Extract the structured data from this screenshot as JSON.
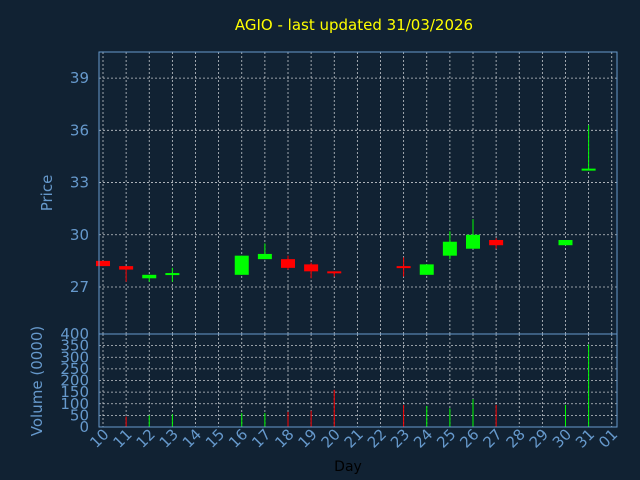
{
  "title": "AGIO - last updated 31/03/2026",
  "colors": {
    "background": "#112233",
    "title": "#ffff00",
    "axis": "#6699cc",
    "up": "#00ff00",
    "down": "#ff0000",
    "grid": "#ffffff"
  },
  "chart_data": [
    {
      "type": "candlestick",
      "ylabel": "Price",
      "ylim": [
        24.3,
        40.5
      ],
      "yticks": [
        27,
        30,
        33,
        36,
        39
      ],
      "grid": true,
      "candles": [
        {
          "day": "10",
          "open": 28.5,
          "high": 28.5,
          "low": 28.2,
          "close": 28.2
        },
        {
          "day": "11",
          "open": 28.2,
          "high": 28.2,
          "low": 27.3,
          "close": 28.0
        },
        {
          "day": "12",
          "open": 27.5,
          "high": 27.7,
          "low": 27.3,
          "close": 27.7
        },
        {
          "day": "13",
          "open": 27.7,
          "high": 28.1,
          "low": 27.3,
          "close": 27.8
        },
        {
          "day": "16",
          "open": 27.7,
          "high": 28.8,
          "low": 27.7,
          "close": 28.8
        },
        {
          "day": "17",
          "open": 28.6,
          "high": 29.5,
          "low": 28.6,
          "close": 28.9
        },
        {
          "day": "18",
          "open": 28.6,
          "high": 28.8,
          "low": 28.0,
          "close": 28.1
        },
        {
          "day": "19",
          "open": 28.3,
          "high": 28.4,
          "low": 27.5,
          "close": 27.9
        },
        {
          "day": "20",
          "open": 27.9,
          "high": 27.9,
          "low": 27.6,
          "close": 27.8
        },
        {
          "day": "23",
          "open": 28.2,
          "high": 28.7,
          "low": 27.6,
          "close": 28.1
        },
        {
          "day": "24",
          "open": 27.7,
          "high": 28.3,
          "low": 27.7,
          "close": 28.3
        },
        {
          "day": "25",
          "open": 28.8,
          "high": 30.2,
          "low": 28.6,
          "close": 29.6
        },
        {
          "day": "26",
          "open": 29.2,
          "high": 30.9,
          "low": 29.2,
          "close": 30.0
        },
        {
          "day": "27",
          "open": 29.7,
          "high": 29.8,
          "low": 29.2,
          "close": 29.4
        },
        {
          "day": "30",
          "open": 29.4,
          "high": 29.7,
          "low": 29.4,
          "close": 29.7
        },
        {
          "day": "31",
          "open": 33.7,
          "high": 36.3,
          "low": 33.7,
          "close": 33.8
        }
      ]
    },
    {
      "type": "bar",
      "ylabel": "Volume (0000)",
      "xlabel": "Day",
      "ylim": [
        0,
        400
      ],
      "yticks": [
        0,
        50,
        100,
        150,
        200,
        250,
        300,
        350,
        400
      ],
      "categories": [
        "10",
        "11",
        "12",
        "13",
        "14",
        "15",
        "16",
        "17",
        "18",
        "19",
        "20",
        "21",
        "22",
        "23",
        "24",
        "25",
        "26",
        "27",
        "28",
        "29",
        "30",
        "31",
        "01"
      ],
      "values": [
        0,
        45,
        50,
        55,
        0,
        0,
        60,
        60,
        65,
        70,
        160,
        0,
        0,
        95,
        90,
        80,
        120,
        95,
        0,
        0,
        95,
        355,
        0
      ],
      "direction": [
        "down",
        "down",
        "up",
        "up",
        "",
        "",
        "up",
        "up",
        "down",
        "down",
        "down",
        "",
        "",
        "down",
        "up",
        "up",
        "up",
        "down",
        "",
        "",
        "up",
        "up",
        ""
      ]
    }
  ]
}
